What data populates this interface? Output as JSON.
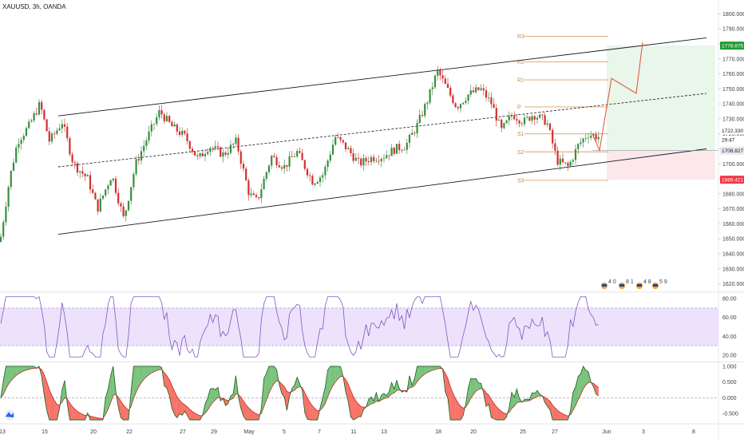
{
  "chart_data": {
    "type": "candlestick",
    "title": "XAUUSD, 3h, OANDA",
    "symbol": "XAUUSD",
    "timeframe": "3h",
    "exchange": "OANDA",
    "price_axis": {
      "ylim": [
        1615,
        1805
      ],
      "ticks": [
        "1800.000",
        "1790.000",
        "1780.000",
        "1770.000",
        "1760.000",
        "1750.000",
        "1740.000",
        "1730.000",
        "1720.000",
        "1710.000",
        "1700.000",
        "1690.000",
        "1680.000",
        "1670.000",
        "1660.000",
        "1650.000",
        "1640.000",
        "1630.000",
        "1620.000"
      ],
      "tick_values": [
        1800,
        1790,
        1780,
        1770,
        1760,
        1750,
        1740,
        1730,
        1720,
        1710,
        1700,
        1690,
        1680,
        1670,
        1660,
        1650,
        1640,
        1630,
        1620
      ]
    },
    "x_axis": {
      "ticks": [
        "13",
        "15",
        "20",
        "22",
        "27",
        "29",
        "May",
        "5",
        "7",
        "11",
        "13",
        "18",
        "20",
        "25",
        "27",
        "Jun",
        "3",
        "8"
      ],
      "tick_index": [
        3,
        56,
        117,
        162,
        229,
        268,
        312,
        356,
        400,
        443,
        481,
        549,
        593,
        655,
        695,
        760,
        806,
        869
      ]
    },
    "price_tags": {
      "tp": {
        "label": "1778.875",
        "value": 1778.875,
        "color": "#1e9b30"
      },
      "current": {
        "label": "1722.330",
        "value": 1722.33
      },
      "countdown": {
        "label": "29:47",
        "value": 1716.0
      },
      "entry": {
        "label": "1708.827",
        "value": 1708.827,
        "color": "#131722"
      },
      "sl": {
        "label": "1689.421",
        "value": 1689.421,
        "color": "#f23645"
      }
    },
    "pivots": [
      {
        "label": "R3",
        "value": 1785
      },
      {
        "label": "R2",
        "value": 1768
      },
      {
        "label": "R1",
        "value": 1756
      },
      {
        "label": "P",
        "value": 1738
      },
      {
        "label": "S1",
        "value": 1720
      },
      {
        "label": "S2",
        "value": 1708
      },
      {
        "label": "S3",
        "value": 1689
      }
    ],
    "rsi": {
      "ylim": [
        14,
        86
      ],
      "ticks": [
        "80.00",
        "60.00",
        "40.00",
        "20.00"
      ],
      "tick_values": [
        80,
        60,
        40,
        20
      ],
      "band": [
        30,
        70
      ]
    },
    "oscillator": {
      "ylim": [
        -0.8,
        1.1
      ],
      "ticks": [
        "1.000",
        "0.500",
        "0.000",
        "-0.500"
      ],
      "tick_values": [
        1.0,
        0.5,
        0.0,
        -0.5
      ]
    },
    "events": [
      {
        "label": "4 0"
      },
      {
        "label": "8 1"
      },
      {
        "label": "4 8"
      },
      {
        "label": "5 9"
      }
    ],
    "colors": {
      "up": "#26a69a",
      "down": "#ef5350",
      "rsi_line": "#7e57c2",
      "rsi_band": "#ede2fb",
      "projection": "#e35b3c",
      "pivot": "#d9a06a",
      "channel": "#131722"
    }
  }
}
